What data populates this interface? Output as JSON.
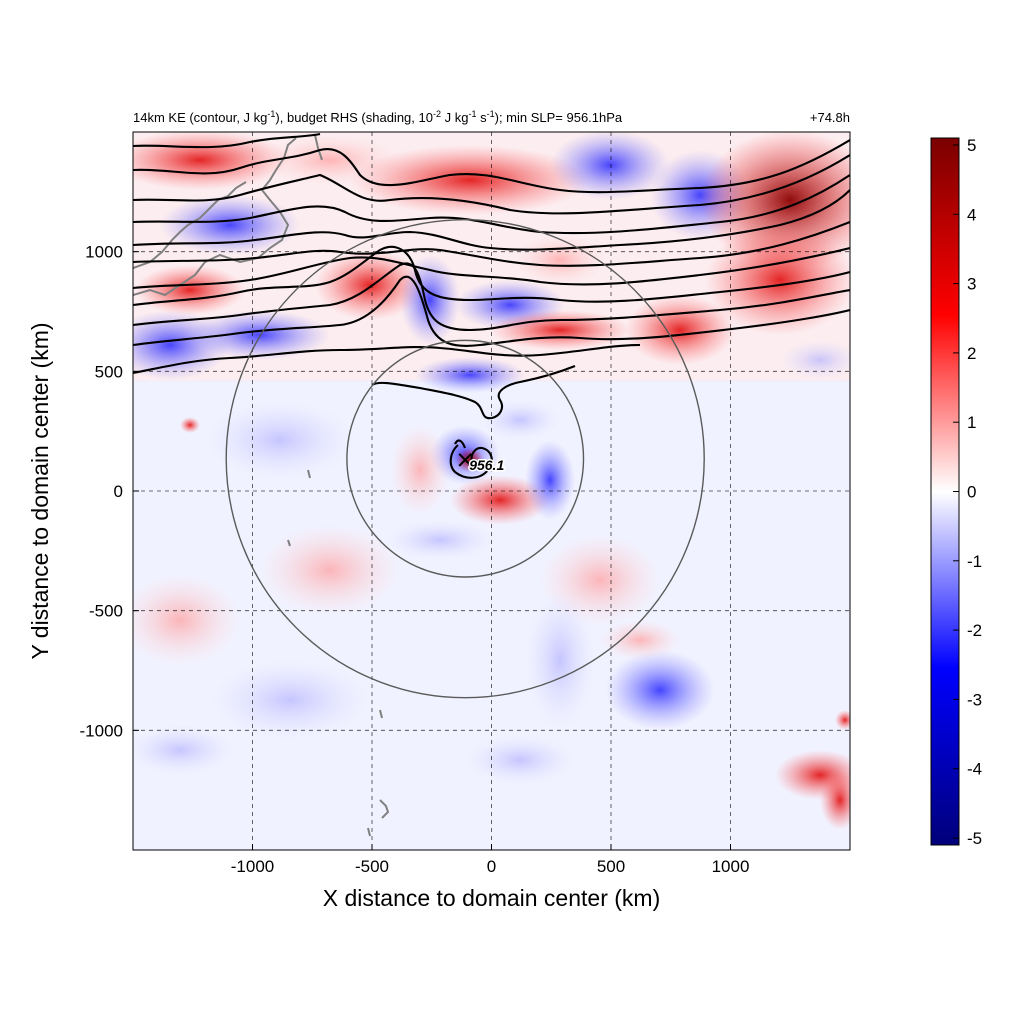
{
  "chart_data": {
    "type": "heatmap",
    "header": {
      "title_parts": {
        "t1": "14km KE (contour, J kg",
        "t1_sup": "-1",
        "t2": "), budget RHS (shading, 10",
        "t2_sup": "-2",
        "t3": " J kg",
        "t3_sup": "-1",
        "t4": " s",
        "t4_sup": "-1",
        "t5": "); min SLP= 956.1hPa"
      },
      "forecast_hour": "+74.8h"
    },
    "xlabel": "X distance to domain center (km)",
    "ylabel": "Y distance to domain center (km)",
    "xlim": [
      -1500,
      1500
    ],
    "ylim": [
      -1500,
      1500
    ],
    "x_ticks": [
      -1000,
      -500,
      0,
      500,
      1000
    ],
    "x_tick_labels": [
      "-1000",
      "-500",
      "0",
      "500",
      "1000"
    ],
    "y_ticks": [
      -1000,
      -500,
      0,
      500,
      1000
    ],
    "y_tick_labels": [
      "-1000",
      "-500",
      "0",
      "500",
      "1000"
    ],
    "grid": true,
    "grid_style": "dashed",
    "colorbar": {
      "min": -5,
      "max": 5,
      "ticks": [
        5,
        4,
        3,
        2,
        1,
        0,
        -1,
        -2,
        -3,
        -4,
        -5
      ],
      "tick_labels": [
        "5",
        "4",
        "3",
        "2",
        "1",
        "0",
        "-1",
        "-2",
        "-3",
        "-4",
        "-5"
      ],
      "colors": [
        "#00007a",
        "#0000ff",
        "#ffffff",
        "#ff0000",
        "#7a0000"
      ],
      "placement": "right"
    },
    "storm_center": {
      "x": -110,
      "y": 130,
      "label": "956.1"
    },
    "rings": [
      {
        "cx": -110,
        "cy": 135,
        "r": 495
      },
      {
        "cx": -110,
        "cy": 135,
        "r": 1000
      }
    ]
  }
}
